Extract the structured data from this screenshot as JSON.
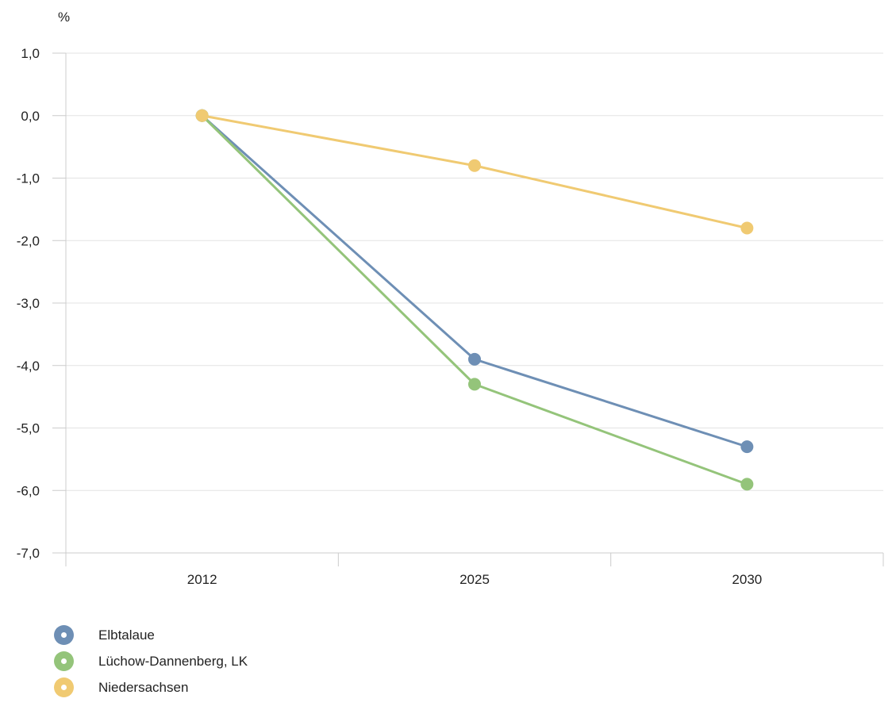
{
  "chart_data": {
    "type": "line",
    "ylabel": "%",
    "x": [
      "2012",
      "2025",
      "2030"
    ],
    "ylim": [
      -7,
      1
    ],
    "yticks": [
      "1,0",
      "0,0",
      "-1,0",
      "-2,0",
      "-3,0",
      "-4,0",
      "-5,0",
      "-6,0",
      "-7,0"
    ],
    "grid": true,
    "legend_position": "bottom-left",
    "series": [
      {
        "name": "Elbtalaue",
        "color": "#6e8fb5",
        "values": [
          0.0,
          -3.9,
          -5.3
        ]
      },
      {
        "name": "Lüchow-Dannenberg, LK",
        "color": "#94c47a",
        "values": [
          0.0,
          -4.3,
          -5.9
        ]
      },
      {
        "name": "Niedersachsen",
        "color": "#f0ca72",
        "values": [
          0.0,
          -0.8,
          -1.8
        ]
      }
    ]
  }
}
